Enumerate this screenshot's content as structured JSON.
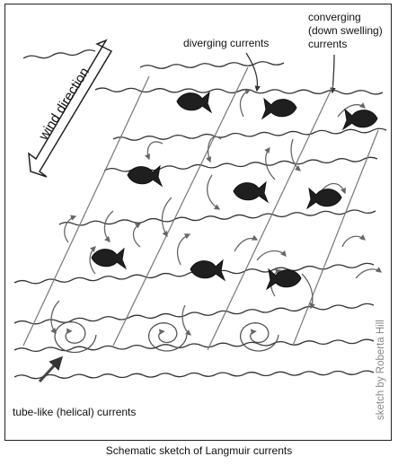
{
  "labels": {
    "wind_direction": "wind direction",
    "diverging": "diverging currents",
    "converging_line1": "converging",
    "converging_line2": "(down swelling)",
    "converging_line3": "currents",
    "helical": "tube-like (helical) currents"
  },
  "credit": "sketch by Roberta Hill",
  "caption": "Schematic sketch of Langmuir currents",
  "colors": {
    "ink": "#222222",
    "arrow": "#666666",
    "fish": "#1f1f1f",
    "credit": "#888888"
  },
  "icons": [
    "wind-arrow-icon",
    "fish-icon",
    "curved-arrow-icon",
    "spiral-icon"
  ],
  "fish_count": 9
}
